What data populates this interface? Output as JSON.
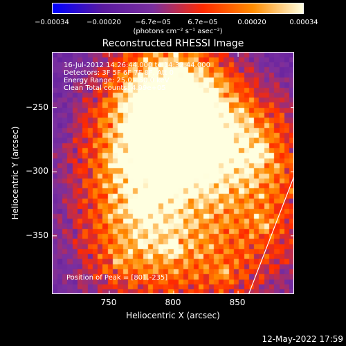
{
  "chart_data": {
    "type": "heatmap",
    "title": "Reconstructed RHESSI Image",
    "xlabel": "Heliocentric X (arcsec)",
    "ylabel": "Heliocentric Y (arcsec)",
    "xlim": [
      706,
      894
    ],
    "ylim": [
      -396,
      -207
    ],
    "x_ticks": [
      "750",
      "800",
      "850"
    ],
    "x_tick_values": [
      750,
      800,
      850
    ],
    "y_ticks": [
      "−250",
      "−300",
      "−350"
    ],
    "y_tick_values": [
      -250,
      -300,
      -350
    ],
    "colorbar": {
      "range": [
        -0.00034,
        0.00034
      ],
      "tick_labels": [
        "−0.00034",
        "−0.00020",
        "−6.7e−05",
        "6.7e−05",
        "0.00020",
        "0.00034"
      ],
      "tick_values": [
        -0.00034,
        -0.0002,
        -6.7e-05,
        6.7e-05,
        0.0002,
        0.00034
      ],
      "unit": "(photons cm⁻² s⁻¹ asec⁻²)",
      "colors": [
        "#0000ff",
        "#5a1aa0",
        "#7a2f9f",
        "#ff2a00",
        "#ff8c00",
        "#ffffe0"
      ]
    },
    "sources": [
      {
        "x": 801,
        "y": -235,
        "level": 1.0
      },
      {
        "x": 790,
        "y": -274,
        "level": 0.85
      },
      {
        "x": 773,
        "y": -330,
        "level": 0.7
      },
      {
        "x": 812,
        "y": -295,
        "level": 0.72
      },
      {
        "x": 865,
        "y": -287,
        "level": 0.85
      },
      {
        "x": 830,
        "y": -262,
        "level": 0.6
      },
      {
        "x": 757,
        "y": -290,
        "level": 0.45
      },
      {
        "x": 800,
        "y": -360,
        "level": 0.55
      },
      {
        "x": 870,
        "y": -340,
        "level": 0.5
      },
      {
        "x": 840,
        "y": -380,
        "level": 0.45
      },
      {
        "x": 780,
        "y": -238,
        "level": 0.5
      },
      {
        "x": 760,
        "y": -370,
        "level": 0.45
      }
    ],
    "limb_line": {
      "x": [
        858,
        894
      ],
      "y": [
        -396,
        -302
      ]
    }
  },
  "annotations": {
    "time": "16-Jul-2012 14:26:44.000 to 14:32:44.000",
    "detectors": "Detectors: 3F 5F 6F 7F 8F, Att 0",
    "energy": "Energy Range: 25.0 - 50.0 keV",
    "clean": "Clean    Total counts: 4.99e+05",
    "peak": "Position of Peak = [801,-235]"
  },
  "footer": "12-May-2022 17:59"
}
